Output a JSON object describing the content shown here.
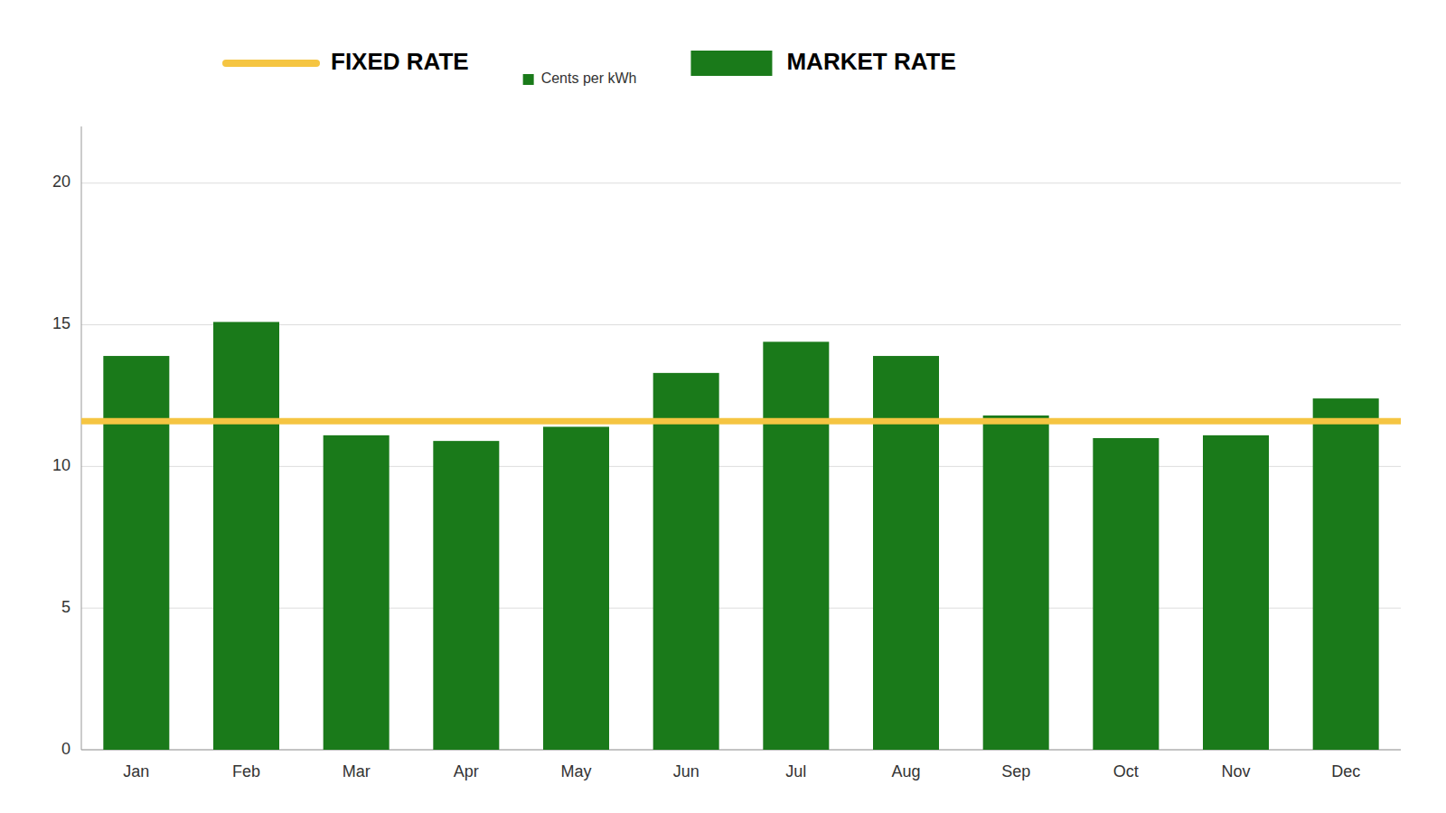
{
  "chart_data": {
    "type": "bar",
    "subtitle": "Cents per kWh",
    "categories": [
      "Jan",
      "Feb",
      "Mar",
      "Apr",
      "May",
      "Jun",
      "Jul",
      "Aug",
      "Sep",
      "Oct",
      "Nov",
      "Dec"
    ],
    "series": [
      {
        "name": "MARKET RATE",
        "color": "#1a7a1a",
        "values": [
          13.9,
          15.1,
          11.1,
          10.9,
          11.4,
          13.3,
          14.4,
          13.9,
          11.8,
          11.0,
          11.1,
          12.4
        ]
      }
    ],
    "reference_lines": [
      {
        "name": "FIXED RATE",
        "value": 11.6,
        "color": "#f5c542"
      }
    ],
    "ylim": [
      0,
      22
    ],
    "yticks": [
      0,
      5,
      10,
      15,
      20
    ],
    "grid": true
  }
}
